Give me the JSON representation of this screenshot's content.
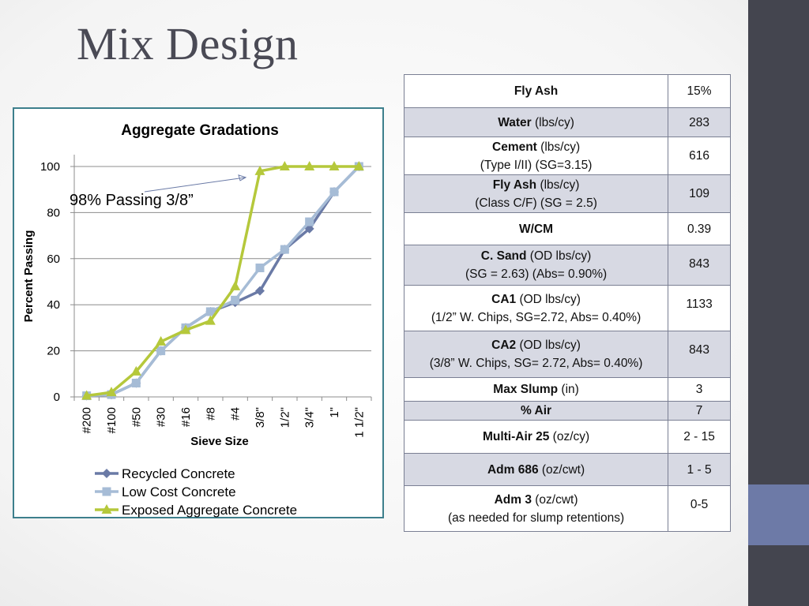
{
  "slide": {
    "title": "Mix Design"
  },
  "colors": {
    "sidebar": "#44454f",
    "accent": "#6d7aa7",
    "chart_border": "#3d7f8c"
  },
  "annotation": "98% Passing 3/8”",
  "chart_data": {
    "type": "line",
    "title": "Aggregate Gradations",
    "xlabel": "Sieve Size",
    "ylabel": "Percent Passing",
    "ylim": [
      0,
      100
    ],
    "yticks": [
      0,
      20,
      40,
      60,
      80,
      100
    ],
    "grid": true,
    "legend_position": "bottom",
    "categories": [
      "#200",
      "#100",
      "#50",
      "#30",
      "#16",
      "#8",
      "#4",
      "3/8\"",
      "1/2\"",
      "3/4\"",
      "1\"",
      "1 1/2\""
    ],
    "series": [
      {
        "name": "Recycled Concrete",
        "color": "#6a7aa6",
        "marker": "diamond",
        "values": [
          0.5,
          1,
          6,
          20,
          30,
          37,
          41,
          46,
          64,
          73,
          89,
          100
        ]
      },
      {
        "name": "Low Cost Concrete",
        "color": "#a6bcd6",
        "marker": "square",
        "values": [
          0.5,
          1,
          6,
          20,
          30,
          37,
          42,
          56,
          64,
          76,
          89,
          100
        ]
      },
      {
        "name": "Exposed Aggregate Concrete",
        "color": "#b5c83b",
        "marker": "triangle",
        "values": [
          0.5,
          2,
          11,
          24,
          29,
          33,
          48,
          98,
          100,
          100,
          100,
          100
        ]
      }
    ]
  },
  "table": {
    "rows": [
      {
        "name": "Fly Ash",
        "value": "15%"
      },
      {
        "name": "Water",
        "detail": "(lbs/cy)",
        "value": "283"
      },
      {
        "name": "Cement",
        "detail": "(lbs/cy)",
        "line2": "(Type I/II) (SG=3.15)",
        "value": "616"
      },
      {
        "name": "Fly Ash",
        "detail": "(lbs/cy)",
        "line2": "(Class C/F) (SG = 2.5)",
        "value": "109"
      },
      {
        "name": "W/CM",
        "value": "0.39"
      },
      {
        "name": "C. Sand",
        "detail": "(OD lbs/cy)",
        "line2": "(SG = 2.63) (Abs= 0.90%)",
        "value": "843"
      },
      {
        "name": "CA1",
        "detail": "(OD lbs/cy)",
        "line2": "(1/2” W. Chips, SG=2.72, Abs= 0.40%)",
        "value": "1133"
      },
      {
        "name": "CA2",
        "detail": "(OD lbs/cy)",
        "line2": "(3/8” W. Chips, SG= 2.72, Abs= 0.40%)",
        "value": "843"
      },
      {
        "name": "Max Slump",
        "detail": "(in)",
        "value": "3"
      },
      {
        "name": "% Air",
        "value": "7"
      },
      {
        "name": "Multi-Air 25",
        "detail": "(oz/cy)",
        "value": "2 - 15"
      },
      {
        "name": "Adm 686",
        "detail": "(oz/cwt)",
        "value": "1 - 5"
      },
      {
        "name": "Adm 3",
        "detail": "(oz/cwt)",
        "line2": "(as needed for slump retentions)",
        "value": "0-5"
      }
    ]
  }
}
